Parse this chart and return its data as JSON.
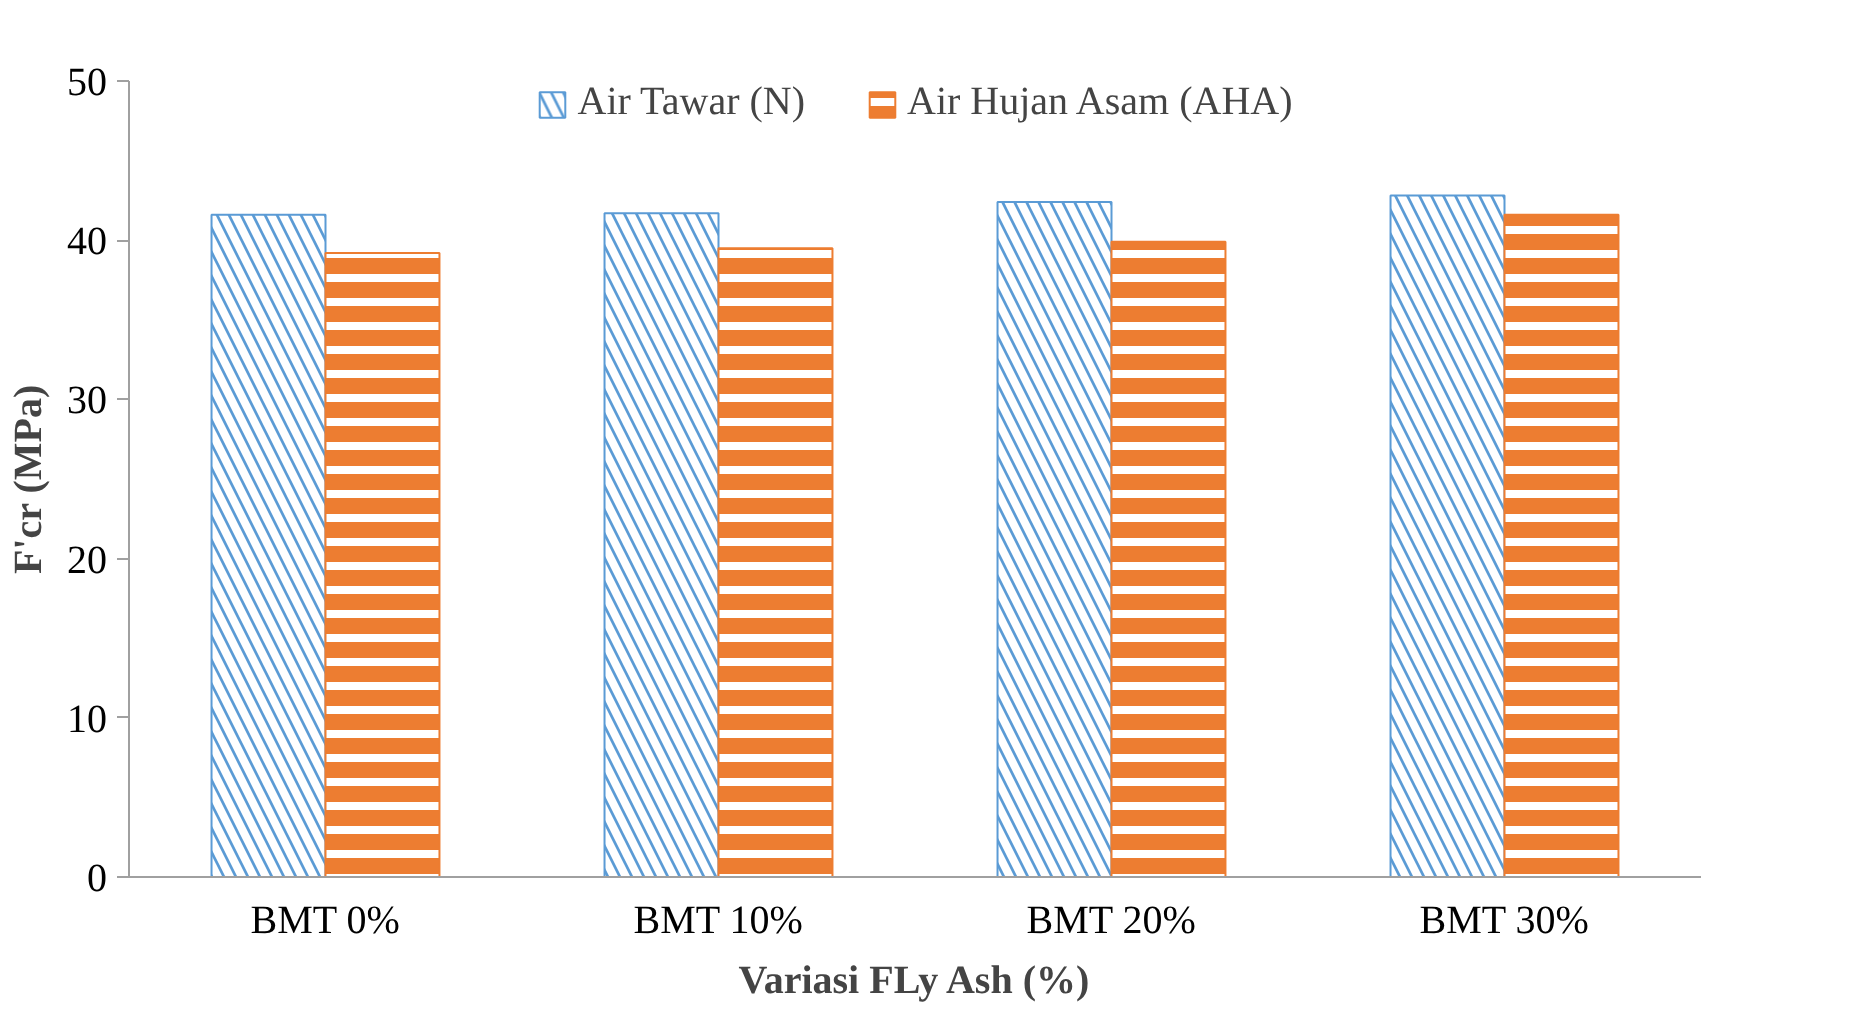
{
  "chart_data": {
    "type": "bar",
    "xlabel": "Variasi FLy Ash (%)",
    "ylabel": "F'cr (MPa)",
    "categories": [
      "BMT 0%",
      "BMT 10%",
      "BMT 20%",
      "BMT 30%"
    ],
    "series": [
      {
        "name": "Air Tawar (N)",
        "color": "#5b9bd5",
        "values": [
          41.6,
          41.7,
          42.4,
          42.8
        ]
      },
      {
        "name": "Air Hujan Asam (AHA)",
        "color": "#ed7d31",
        "values": [
          39.2,
          39.5,
          39.9,
          41.6
        ]
      }
    ],
    "ylim": [
      0,
      50
    ],
    "yticks": [
      0,
      10,
      20,
      30,
      40,
      50
    ],
    "grid": false,
    "legend": "top"
  }
}
